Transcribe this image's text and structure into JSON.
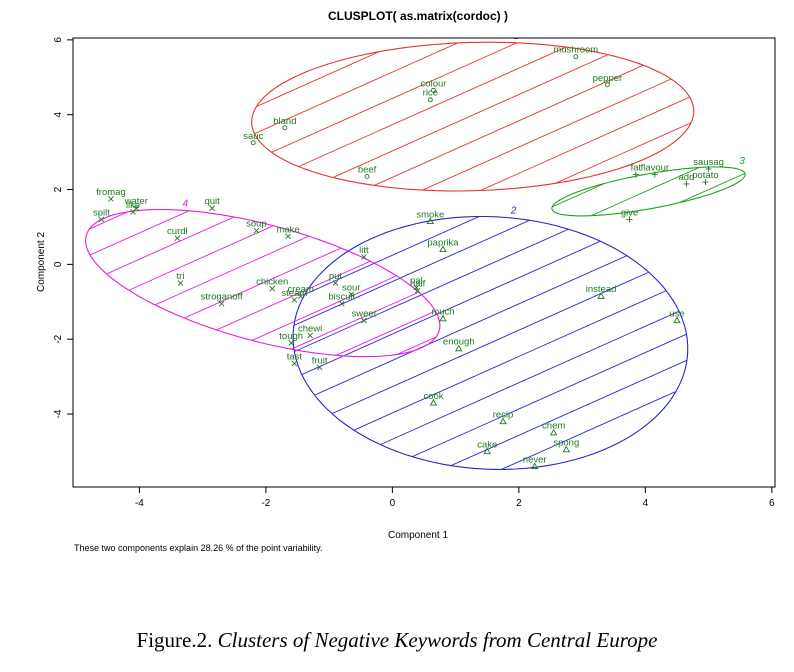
{
  "chart_data": {
    "type": "scatter",
    "title": "CLUSPLOT( as.matrix(cordoc) )",
    "xlabel": "Component 1",
    "ylabel": "Component 2",
    "xlim": [
      -5.05,
      6.05
    ],
    "ylim": [
      -5.95,
      6.05
    ],
    "x_ticks": [
      -4,
      -2,
      0,
      2,
      4,
      6
    ],
    "y_ticks": [
      -4,
      -2,
      0,
      2,
      4,
      6
    ],
    "note": "These two components explain 28.26 % of the point variability.",
    "clusters": [
      {
        "label": "1",
        "color": "#e3342f",
        "marker": "circle",
        "ellipse": {
          "cx": 1.27,
          "cy": 3.95,
          "rx": 3.5,
          "ry": 1.98,
          "angle_deg": 3.5
        },
        "points": [
          {
            "label": "mushroom",
            "x": 2.9,
            "y": 5.55
          },
          {
            "label": "pepper",
            "x": 3.4,
            "y": 4.8
          },
          {
            "label": "colour",
            "x": 0.65,
            "y": 4.65
          },
          {
            "label": "rice",
            "x": 0.6,
            "y": 4.4
          },
          {
            "label": "bland",
            "x": -1.7,
            "y": 3.65
          },
          {
            "label": "sauc",
            "x": -2.2,
            "y": 3.25
          },
          {
            "label": "beef",
            "x": -0.4,
            "y": 2.35
          }
        ]
      },
      {
        "label": "2",
        "color": "#2626c9",
        "marker": "triangle",
        "ellipse": {
          "cx": 1.55,
          "cy": -2.1,
          "rx": 3.1,
          "ry": 3.4,
          "angle_deg": 15
        },
        "points": [
          {
            "label": "smoke",
            "x": 0.6,
            "y": 1.15
          },
          {
            "label": "paprika",
            "x": 0.8,
            "y": 0.4
          },
          {
            "label": "instead",
            "x": 3.3,
            "y": -0.85
          },
          {
            "label": "use",
            "x": 4.5,
            "y": -1.5
          },
          {
            "label": "much",
            "x": 0.8,
            "y": -1.45
          },
          {
            "label": "enough",
            "x": 1.05,
            "y": -2.25
          },
          {
            "label": "cook",
            "x": 0.65,
            "y": -3.7
          },
          {
            "label": "recip",
            "x": 1.75,
            "y": -4.2
          },
          {
            "label": "chem",
            "x": 2.55,
            "y": -4.5
          },
          {
            "label": "spong",
            "x": 2.75,
            "y": -4.95
          },
          {
            "label": "cake",
            "x": 1.5,
            "y": -5.0
          },
          {
            "label": "never",
            "x": 2.25,
            "y": -5.4
          }
        ]
      },
      {
        "label": "3",
        "color": "#22a022",
        "marker": "plus",
        "ellipse": {
          "cx": 4.05,
          "cy": 1.95,
          "rx": 1.6,
          "ry": 0.45,
          "angle_deg": 18
        },
        "points": [
          {
            "label": "sausag",
            "x": 5.0,
            "y": 2.55
          },
          {
            "label": "fat",
            "x": 3.85,
            "y": 2.4
          },
          {
            "label": "flavour",
            "x": 4.15,
            "y": 2.4
          },
          {
            "label": "add",
            "x": 4.65,
            "y": 2.15
          },
          {
            "label": "potato",
            "x": 4.95,
            "y": 2.2
          },
          {
            "label": "give",
            "x": 3.75,
            "y": 1.2
          }
        ]
      },
      {
        "label": "4",
        "color": "#e31ce3",
        "marker": "cross",
        "ellipse": {
          "cx": -2.05,
          "cy": -0.5,
          "rx": 3.1,
          "ry": 1.45,
          "angle_deg": -29
        },
        "points": [
          {
            "label": "fromag",
            "x": -4.45,
            "y": 1.75
          },
          {
            "label": "water",
            "x": -4.05,
            "y": 1.5
          },
          {
            "label": "like",
            "x": -4.1,
            "y": 1.4
          },
          {
            "label": "spilt",
            "x": -4.6,
            "y": 1.2
          },
          {
            "label": "quit",
            "x": -2.85,
            "y": 1.5
          },
          {
            "label": "soup",
            "x": -2.15,
            "y": 0.9
          },
          {
            "label": "make",
            "x": -1.65,
            "y": 0.75
          },
          {
            "label": "curdl",
            "x": -3.4,
            "y": 0.7
          },
          {
            "label": "litt",
            "x": -0.45,
            "y": 0.2
          },
          {
            "label": "tri",
            "x": -3.35,
            "y": -0.5
          },
          {
            "label": "put",
            "x": -0.9,
            "y": -0.5
          },
          {
            "label": "chicken",
            "x": -1.9,
            "y": -0.65
          },
          {
            "label": "sour",
            "x": -0.65,
            "y": -0.8
          },
          {
            "label": "cream",
            "x": -1.45,
            "y": -0.85
          },
          {
            "label": "steam",
            "x": -1.55,
            "y": -0.95
          },
          {
            "label": "biscuit",
            "x": -0.8,
            "y": -1.05
          },
          {
            "label": "stroganoff",
            "x": -2.7,
            "y": -1.05
          },
          {
            "label": "sweet",
            "x": -0.45,
            "y": -1.5
          },
          {
            "label": "chewi",
            "x": -1.3,
            "y": -1.9
          },
          {
            "label": "tough",
            "x": -1.6,
            "y": -2.1
          },
          {
            "label": "tast",
            "x": -1.55,
            "y": -2.65
          },
          {
            "label": "fruit",
            "x": -1.15,
            "y": -2.75
          },
          {
            "label": "half",
            "x": 0.4,
            "y": -0.7
          },
          {
            "label": "pal",
            "x": 0.38,
            "y": -0.62
          }
        ]
      }
    ]
  },
  "caption": {
    "prefix": "Figure.2.",
    "text": "Clusters of Negative Keywords from Central Europe"
  }
}
